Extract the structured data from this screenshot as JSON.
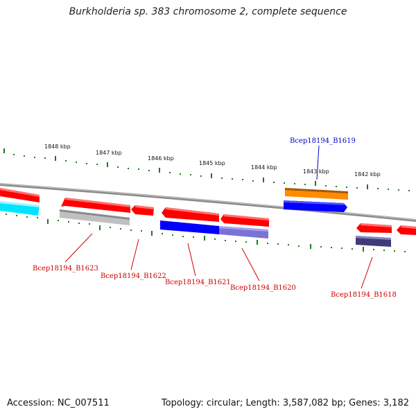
{
  "title": "Burkholderia sp. 383 chromosome 2, complete sequence",
  "accession_text": "Accession: NC_007511",
  "summary_text": "Topology: circular; Length: 3,587,082 bp; Genes: 3,182",
  "scale_labels": [
    "1848 kbp",
    "1847 kbp",
    "1846 kbp",
    "1845 kbp",
    "1844 kbp",
    "1843 kbp",
    "1842 kbp"
  ],
  "gene_labels": {
    "b1619": "Bcep18194_B1619",
    "b1623": "Bcep18194_B1623",
    "b1622": "Bcep18194_B1622",
    "b1621": "Bcep18194_B1621",
    "b1620": "Bcep18194_B1620",
    "b1618": "Bcep18194_B1618"
  },
  "colors": {
    "backbone": "#8c8c8c",
    "tick": "#1a7a1a",
    "gene_red": "#ff0000",
    "gene_blue": "#0000ff",
    "gene_orange": "#ff8c00",
    "gene_cyan": "#00e5ff",
    "gene_gray": "#c0c0c0",
    "gene_slate": "#7a72d6",
    "gene_navy": "#3f3b7a",
    "label_red": "#cc0000",
    "label_blue": "#0000cc"
  }
}
